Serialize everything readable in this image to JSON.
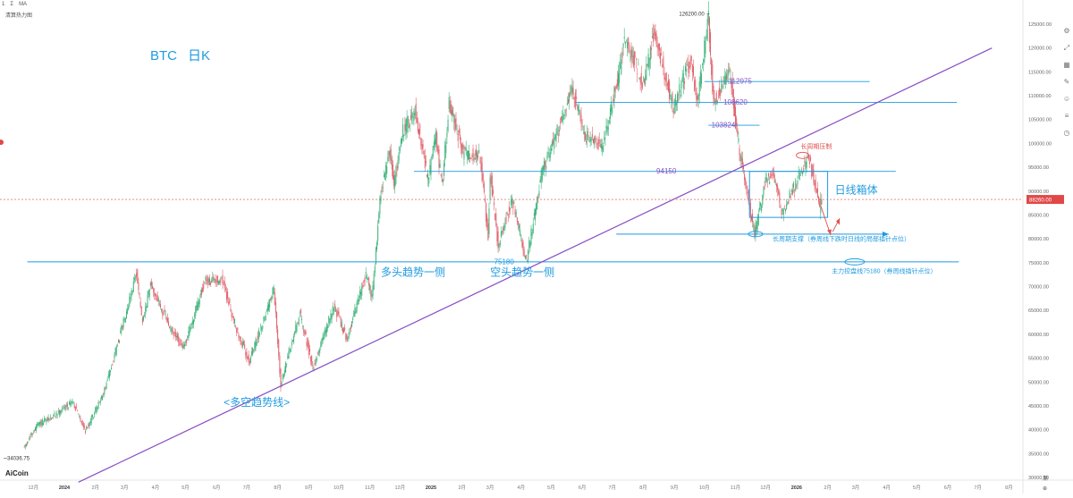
{
  "toolbar": {
    "items": [
      "1",
      "Σ",
      "MA"
    ],
    "heatmap_label": "清算热力图"
  },
  "brand": {
    "logo": "AiCoin"
  },
  "bottom_right": {
    "a": "渐",
    "b": "⊕"
  },
  "chart_data": {
    "type": "candlestick",
    "symbol_title": "BTC",
    "timeframe_title": "日K",
    "ylim": [
      29000,
      128500
    ],
    "y_ticks": [
      30000,
      35000,
      40000,
      45000,
      50000,
      55000,
      60000,
      65000,
      70000,
      75000,
      80000,
      85000,
      90000,
      95000,
      100000,
      105000,
      110000,
      115000,
      120000,
      125000
    ],
    "y_tick_labels": [
      "30000.00",
      "35000.00",
      "40000.00",
      "45000.00",
      "50000.00",
      "55000.00",
      "60000.00",
      "65000.00",
      "70000.00",
      "75000.00",
      "80000.00",
      "85000.00",
      "90000.00",
      "95000.00",
      "100000.00",
      "105000.00",
      "110000.00",
      "115000.00",
      "120000.00",
      "125000.00"
    ],
    "x_ticks": [
      {
        "label": "12月",
        "date": "2023-12-01"
      },
      {
        "label": "2024",
        "date": "2024-01-01"
      },
      {
        "label": "2月",
        "date": "2024-02-01"
      },
      {
        "label": "3月",
        "date": "2024-03-01"
      },
      {
        "label": "4月",
        "date": "2024-04-01"
      },
      {
        "label": "5月",
        "date": "2024-05-01"
      },
      {
        "label": "6月",
        "date": "2024-06-01"
      },
      {
        "label": "7月",
        "date": "2024-07-01"
      },
      {
        "label": "8月",
        "date": "2024-08-01"
      },
      {
        "label": "9月",
        "date": "2024-09-01"
      },
      {
        "label": "10月",
        "date": "2024-10-01"
      },
      {
        "label": "11月",
        "date": "2024-11-01"
      },
      {
        "label": "12月",
        "date": "2024-12-01"
      },
      {
        "label": "2025",
        "date": "2025-01-01"
      },
      {
        "label": "2月",
        "date": "2025-02-01"
      },
      {
        "label": "3月",
        "date": "2025-03-01"
      },
      {
        "label": "4月",
        "date": "2025-04-01"
      },
      {
        "label": "5月",
        "date": "2025-05-01"
      },
      {
        "label": "6月",
        "date": "2025-06-01"
      },
      {
        "label": "7月",
        "date": "2025-07-01"
      },
      {
        "label": "8月",
        "date": "2025-08-01"
      },
      {
        "label": "9月",
        "date": "2025-09-01"
      },
      {
        "label": "10月",
        "date": "2025-10-01"
      },
      {
        "label": "11月",
        "date": "2025-11-01"
      },
      {
        "label": "12月",
        "date": "2025-12-01"
      },
      {
        "label": "2026",
        "date": "2026-01-01"
      },
      {
        "label": "2月",
        "date": "2026-02-01"
      },
      {
        "label": "3月",
        "date": "2026-03-01"
      },
      {
        "label": "4月",
        "date": "2026-04-01"
      },
      {
        "label": "5月",
        "date": "2026-05-01"
      },
      {
        "label": "6月",
        "date": "2026-06-01"
      },
      {
        "label": "7月",
        "date": "2026-07-01"
      },
      {
        "label": "8月",
        "date": "2026-08-01"
      }
    ],
    "price_path": [
      {
        "date": "2023-11-22",
        "price": 36000
      },
      {
        "date": "2023-12-06",
        "price": 41000
      },
      {
        "date": "2023-12-20",
        "price": 42500
      },
      {
        "date": "2024-01-10",
        "price": 46000
      },
      {
        "date": "2024-01-23",
        "price": 39800
      },
      {
        "date": "2024-02-10",
        "price": 47500
      },
      {
        "date": "2024-02-28",
        "price": 61000
      },
      {
        "date": "2024-03-14",
        "price": 73000
      },
      {
        "date": "2024-03-20",
        "price": 62000
      },
      {
        "date": "2024-03-28",
        "price": 70500
      },
      {
        "date": "2024-04-17",
        "price": 61000
      },
      {
        "date": "2024-04-30",
        "price": 57000
      },
      {
        "date": "2024-05-21",
        "price": 71000
      },
      {
        "date": "2024-06-07",
        "price": 71500
      },
      {
        "date": "2024-06-24",
        "price": 59500
      },
      {
        "date": "2024-07-05",
        "price": 54500
      },
      {
        "date": "2024-07-29",
        "price": 69500
      },
      {
        "date": "2024-08-05",
        "price": 49500
      },
      {
        "date": "2024-08-24",
        "price": 64500
      },
      {
        "date": "2024-09-06",
        "price": 53000
      },
      {
        "date": "2024-09-27",
        "price": 66000
      },
      {
        "date": "2024-10-10",
        "price": 59000
      },
      {
        "date": "2024-10-29",
        "price": 72500
      },
      {
        "date": "2024-11-04",
        "price": 67800
      },
      {
        "date": "2024-11-13",
        "price": 90000
      },
      {
        "date": "2024-11-22",
        "price": 99000
      },
      {
        "date": "2024-11-26",
        "price": 91500
      },
      {
        "date": "2024-12-05",
        "price": 102500
      },
      {
        "date": "2024-12-17",
        "price": 107000
      },
      {
        "date": "2024-12-30",
        "price": 92500
      },
      {
        "date": "2025-01-07",
        "price": 101500
      },
      {
        "date": "2025-01-13",
        "price": 91000
      },
      {
        "date": "2025-01-20",
        "price": 108500
      },
      {
        "date": "2025-02-03",
        "price": 98000
      },
      {
        "date": "2025-02-20",
        "price": 97500
      },
      {
        "date": "2025-02-28",
        "price": 80000
      },
      {
        "date": "2025-03-02",
        "price": 94000
      },
      {
        "date": "2025-03-10",
        "price": 78500
      },
      {
        "date": "2025-03-24",
        "price": 88500
      },
      {
        "date": "2025-04-07",
        "price": 75000
      },
      {
        "date": "2025-04-22",
        "price": 93500
      },
      {
        "date": "2025-05-09",
        "price": 103000
      },
      {
        "date": "2025-05-22",
        "price": 111500
      },
      {
        "date": "2025-06-05",
        "price": 101500
      },
      {
        "date": "2025-06-22",
        "price": 99000
      },
      {
        "date": "2025-07-10",
        "price": 116000
      },
      {
        "date": "2025-07-14",
        "price": 122500
      },
      {
        "date": "2025-08-02",
        "price": 112500
      },
      {
        "date": "2025-08-13",
        "price": 123500
      },
      {
        "date": "2025-09-01",
        "price": 107500
      },
      {
        "date": "2025-09-18",
        "price": 117500
      },
      {
        "date": "2025-09-25",
        "price": 108800
      },
      {
        "date": "2025-10-06",
        "price": 126200
      },
      {
        "date": "2025-10-11",
        "price": 108500
      },
      {
        "date": "2025-10-27",
        "price": 115500
      },
      {
        "date": "2025-11-04",
        "price": 101000
      },
      {
        "date": "2025-11-21",
        "price": 81000
      },
      {
        "date": "2025-12-02",
        "price": 92000
      },
      {
        "date": "2025-12-10",
        "price": 94000
      },
      {
        "date": "2025-12-18",
        "price": 85500
      },
      {
        "date": "2026-01-05",
        "price": 93500
      },
      {
        "date": "2026-01-14",
        "price": 97500
      },
      {
        "date": "2026-01-25",
        "price": 86500
      },
      {
        "date": "2026-01-27",
        "price": 88260
      }
    ],
    "markers": {
      "high": {
        "date": "2025-10-06",
        "price": 126200,
        "label": "126200.00"
      },
      "low": {
        "date": "2023-11-22",
        "price": 34036.75,
        "label": "34036.75"
      },
      "last": {
        "price": 88260,
        "label": "88260.00"
      }
    },
    "levels": [
      {
        "price": 112975,
        "label": "112975",
        "from": "2025-10-01",
        "to": "2026-03-15"
      },
      {
        "price": 108620,
        "label": "108620",
        "from": "2025-05-25",
        "to": "2026-06-10"
      },
      {
        "price": 103824,
        "label": "103824",
        "from": "2025-10-05",
        "to": "2025-11-25"
      },
      {
        "price": 94150,
        "label": "94150",
        "from": "2024-12-15",
        "to": "2026-04-10"
      },
      {
        "price": 75180,
        "label": "75180",
        "from": "2023-11-25",
        "to": "2026-06-12"
      }
    ],
    "support_arrow": {
      "price": 81000,
      "from": "2025-07-05",
      "to": "2026-04-03"
    },
    "trendline": {
      "from": {
        "date": "2024-01-15",
        "price": 29000
      },
      "to": {
        "date": "2026-07-15",
        "price": 120000
      }
    },
    "box": {
      "from": "2025-11-15",
      "to": "2026-02-01",
      "top": 94150,
      "bottom": 84500,
      "label": "日线箱体"
    },
    "annotations": [
      {
        "text": "长周期压制",
        "date": "2026-01-05",
        "price": 99000
      },
      {
        "text": "长周期支撑（券周线下跌时日线的局部插针点位）",
        "date": "2025-12-08",
        "price": 79600
      },
      {
        "text": "主力控盘线75180（券周线插针点位）",
        "date": "2026-02-05",
        "price": 72800
      },
      {
        "text": "多头趋势一侧",
        "date": "2024-11-12",
        "price": 72300
      },
      {
        "text": "空头趋势一侧",
        "date": "2025-03-01",
        "price": 72300
      },
      {
        "text": "<多空趋势线>",
        "date": "2024-06-08",
        "price": 45000
      }
    ],
    "colors": {
      "up": "#3cb27a",
      "down": "#e0606a",
      "level": "#1f9be0",
      "trend": "#8a4fc4",
      "annotation_blue": "#1f9be0",
      "annotation_red": "#e05050",
      "last_price": "#e04848"
    }
  }
}
